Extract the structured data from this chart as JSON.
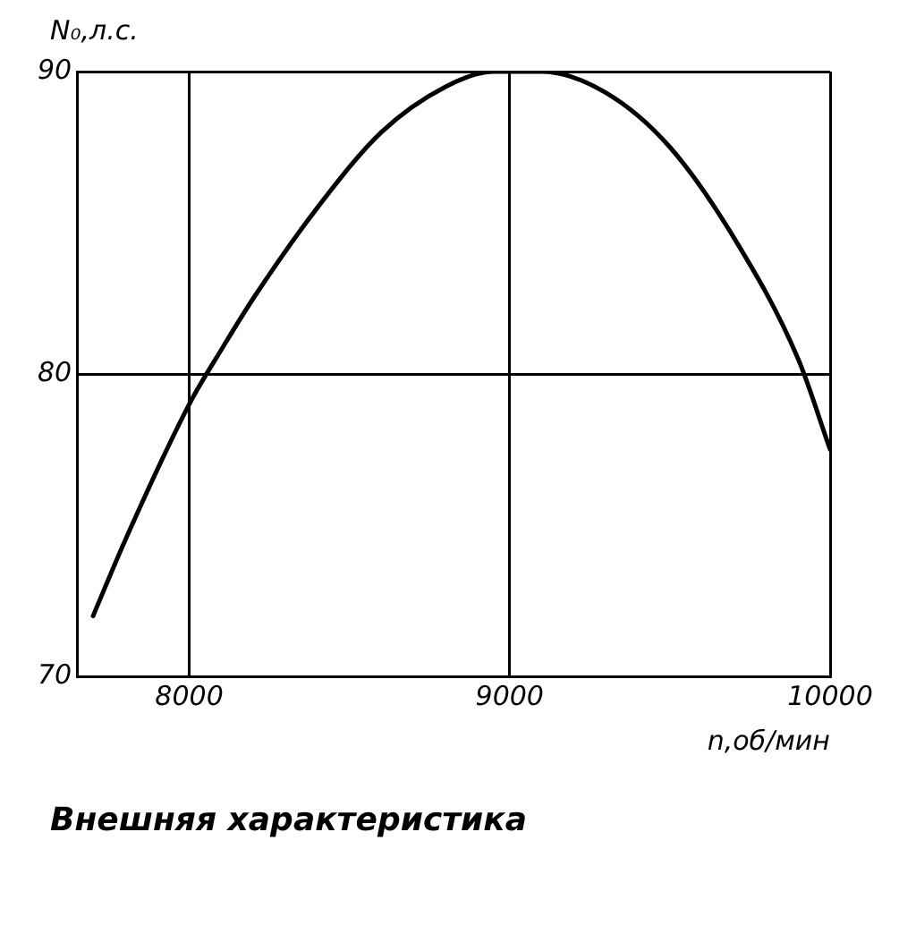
{
  "chart_data": {
    "type": "line",
    "xlabel": "n,об/мин",
    "ylabel": "N₀,л.с.",
    "x": [
      7700,
      7800,
      8000,
      8100,
      8200,
      8400,
      8600,
      8800,
      8950,
      9100,
      9300,
      9500,
      9700,
      9900,
      10000
    ],
    "series": [
      {
        "color": "#000000",
        "values": [
          72,
          74.5,
          79,
          80.8,
          82.5,
          85.5,
          88,
          89.5,
          90,
          90,
          89.3,
          87.5,
          84.5,
          80.5,
          77.5
        ]
      }
    ],
    "xlim": [
      7650,
      10000
    ],
    "xticks": [
      8000,
      9000,
      10000
    ],
    "ylim": [
      70,
      90
    ],
    "yticks": [
      70,
      80,
      90
    ],
    "grid": true,
    "marker": "none",
    "line_style": "solid",
    "annotations": [
      "Внешняя характеристика"
    ]
  }
}
